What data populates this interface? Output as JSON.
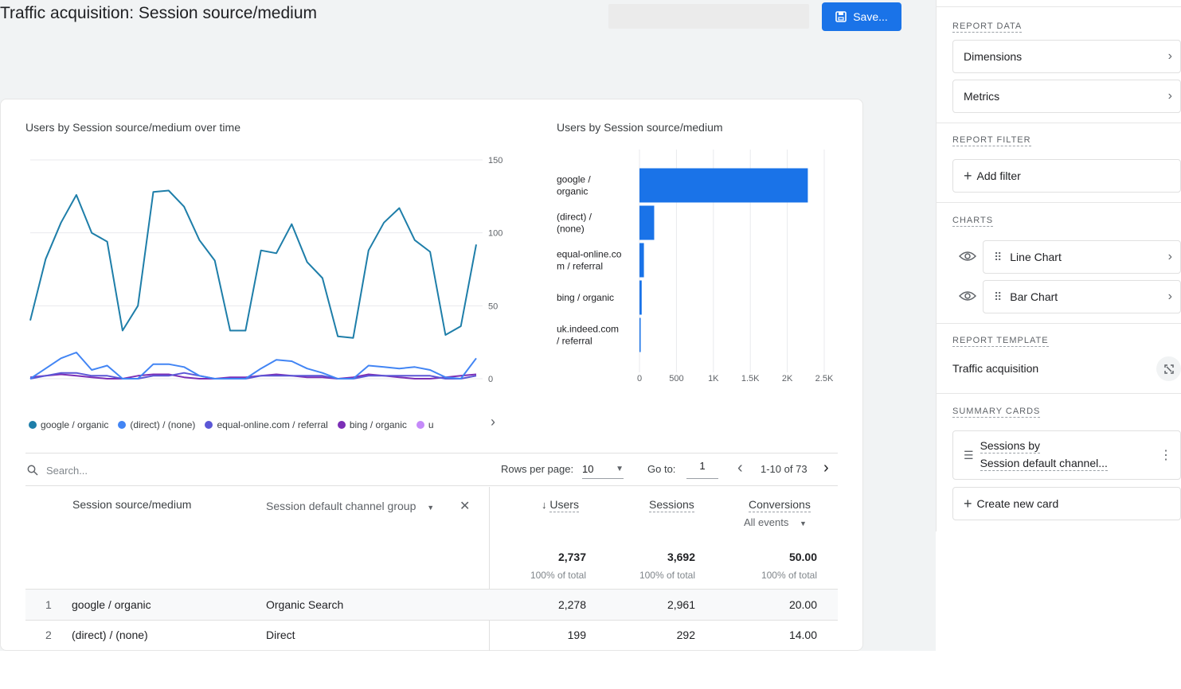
{
  "header": {
    "title": "Traffic acquisition: Session source/medium",
    "save_label": "Save..."
  },
  "line_chart": {
    "title": "Users by Session source/medium over time"
  },
  "bar_chart": {
    "title": "Users by Session source/medium"
  },
  "chart_data": [
    {
      "type": "line",
      "title": "Users by Session source/medium over time",
      "y_ticks": [
        "150",
        "100",
        "50",
        "0"
      ],
      "ylim": [
        0,
        150
      ],
      "grid": true,
      "series": [
        {
          "name": "google / organic",
          "color": "#1e7ea9",
          "values": [
            40,
            82,
            107,
            126,
            100,
            94,
            33,
            50,
            128,
            129,
            118,
            95,
            81,
            33,
            33,
            88,
            86,
            106,
            80,
            69,
            29,
            28,
            88,
            107,
            117,
            95,
            87,
            30,
            36,
            92
          ]
        },
        {
          "name": "(direct) / (none)",
          "color": "#4285f4",
          "values": [
            0,
            7,
            14,
            18,
            6,
            9,
            0,
            0,
            10,
            10,
            8,
            2,
            0,
            0,
            0,
            7,
            13,
            12,
            7,
            4,
            0,
            0,
            9,
            8,
            7,
            8,
            6,
            1,
            0,
            14
          ]
        },
        {
          "name": "equal-online.com / referral",
          "color": "#5b57d6",
          "values": [
            0,
            2,
            4,
            4,
            2,
            2,
            0,
            0,
            2,
            2,
            4,
            2,
            0,
            0,
            0,
            2,
            2,
            2,
            2,
            2,
            0,
            0,
            2,
            2,
            2,
            2,
            2,
            0,
            0,
            2
          ]
        },
        {
          "name": "bing / organic",
          "color": "#7b2fb6",
          "values": [
            1,
            2,
            3,
            2,
            1,
            0,
            0,
            2,
            3,
            3,
            1,
            0,
            0,
            1,
            1,
            2,
            3,
            2,
            1,
            1,
            0,
            1,
            3,
            2,
            1,
            0,
            0,
            1,
            2,
            3
          ]
        }
      ],
      "legend_placement": "bottom"
    },
    {
      "type": "bar",
      "orientation": "horizontal",
      "title": "Users by Session source/medium",
      "categories": [
        [
          "google /",
          "organic"
        ],
        [
          "(direct) /",
          "(none)"
        ],
        [
          "equal-online.co",
          "m / referral"
        ],
        [
          "bing / organic"
        ],
        [
          "uk.indeed.com",
          "/ referral"
        ]
      ],
      "values": [
        2278,
        199,
        60,
        30,
        15
      ],
      "x_ticks": [
        "0",
        "500",
        "1K",
        "1.5K",
        "2K",
        "2.5K"
      ],
      "xlim": [
        0,
        2500
      ],
      "color": "#1a73e8",
      "grid": true
    }
  ],
  "legend": {
    "items": [
      {
        "label": "google / organic",
        "color": "#1e7ea9"
      },
      {
        "label": "(direct) / (none)",
        "color": "#4285f4"
      },
      {
        "label": "equal-online.com / referral",
        "color": "#5b57d6"
      },
      {
        "label": "bing / organic",
        "color": "#7b2fb6"
      },
      {
        "label": "u",
        "color": "#c58af9"
      }
    ]
  },
  "table": {
    "search_placeholder": "Search...",
    "rows_per_page_label": "Rows per page:",
    "rows_per_page_value": "10",
    "goto_label": "Go to:",
    "goto_value": "1",
    "pagination": "1-10 of 73",
    "columns": {
      "dimension": "Session source/medium",
      "secondary": "Session default channel group",
      "users": "Users",
      "sessions": "Sessions",
      "conversions": "Conversions",
      "conversions_filter": "All events"
    },
    "totals": {
      "users": "2,737",
      "users_sub": "100% of total",
      "sessions": "3,692",
      "sessions_sub": "100% of total",
      "conversions": "50.00",
      "conversions_sub": "100% of total"
    },
    "rows": [
      {
        "index": "1",
        "source": "google / organic",
        "channel": "Organic Search",
        "users": "2,278",
        "sessions": "2,961",
        "conversions": "20.00"
      },
      {
        "index": "2",
        "source": "(direct) / (none)",
        "channel": "Direct",
        "users": "199",
        "sessions": "292",
        "conversions": "14.00"
      }
    ]
  },
  "panel": {
    "report_data": "REPORT DATA",
    "dimensions": "Dimensions",
    "metrics": "Metrics",
    "report_filter": "REPORT FILTER",
    "add_filter": "Add filter",
    "charts": "CHARTS",
    "line_chart": "Line Chart",
    "bar_chart": "Bar Chart",
    "report_template": "REPORT TEMPLATE",
    "template_name": "Traffic acquisition",
    "summary_cards": "SUMMARY CARDS",
    "card_line1": "Sessions by",
    "card_line2": "Session default channel...",
    "create_card": "Create new card"
  },
  "icons": {
    "save": "save-icon",
    "search": "search-icon",
    "sort": "arrow-down-icon",
    "eye": "eye-icon",
    "drag": "drag-handle-icon",
    "chevron": "chevron-right-icon",
    "unlink": "unlink-icon",
    "more": "more-vert-icon",
    "plus": "plus-icon"
  }
}
